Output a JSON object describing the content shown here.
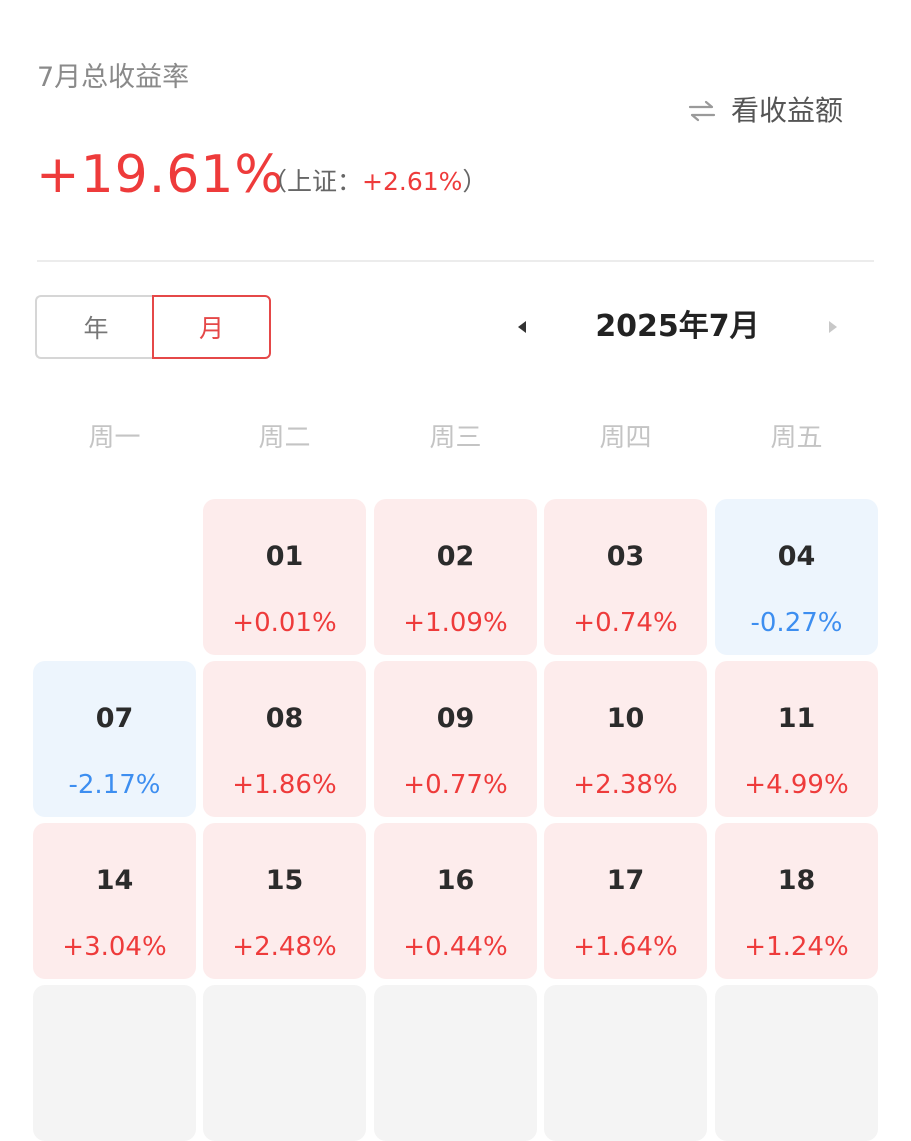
{
  "header": {
    "month_label": "7月总收益率",
    "toggle_label": "看收益额",
    "total_rate": "+19.61%",
    "bench_prefix": "（上证：",
    "bench_value": "+2.61%",
    "bench_suffix": "）"
  },
  "view_toggle": {
    "year_label": "年",
    "month_label": "月",
    "selected": "月"
  },
  "calendar": {
    "current_month": "2025年7月",
    "weekdays": [
      "周一",
      "周二",
      "周三",
      "周四",
      "周五"
    ],
    "rows": [
      [
        null,
        {
          "day": "01",
          "pct": "+0.01%",
          "trend": "up"
        },
        {
          "day": "02",
          "pct": "+1.09%",
          "trend": "up"
        },
        {
          "day": "03",
          "pct": "+0.74%",
          "trend": "up"
        },
        {
          "day": "04",
          "pct": "-0.27%",
          "trend": "down"
        }
      ],
      [
        {
          "day": "07",
          "pct": "-2.17%",
          "trend": "down"
        },
        {
          "day": "08",
          "pct": "+1.86%",
          "trend": "up"
        },
        {
          "day": "09",
          "pct": "+0.77%",
          "trend": "up"
        },
        {
          "day": "10",
          "pct": "+2.38%",
          "trend": "up"
        },
        {
          "day": "11",
          "pct": "+4.99%",
          "trend": "up"
        }
      ],
      [
        {
          "day": "14",
          "pct": "+3.04%",
          "trend": "up"
        },
        {
          "day": "15",
          "pct": "+2.48%",
          "trend": "up"
        },
        {
          "day": "16",
          "pct": "+0.44%",
          "trend": "up"
        },
        {
          "day": "17",
          "pct": "+1.64%",
          "trend": "up"
        },
        {
          "day": "18",
          "pct": "+1.24%",
          "trend": "up"
        }
      ]
    ]
  },
  "colors": {
    "up": "#ee3b3b",
    "down": "#3d8ef0",
    "up_bg": "#fdecec",
    "down_bg": "#edf5fd",
    "accent": "#e54848"
  },
  "icons": {
    "toggle": "swap-arrows-icon",
    "prev": "triangle-left-icon",
    "next": "triangle-right-icon"
  }
}
